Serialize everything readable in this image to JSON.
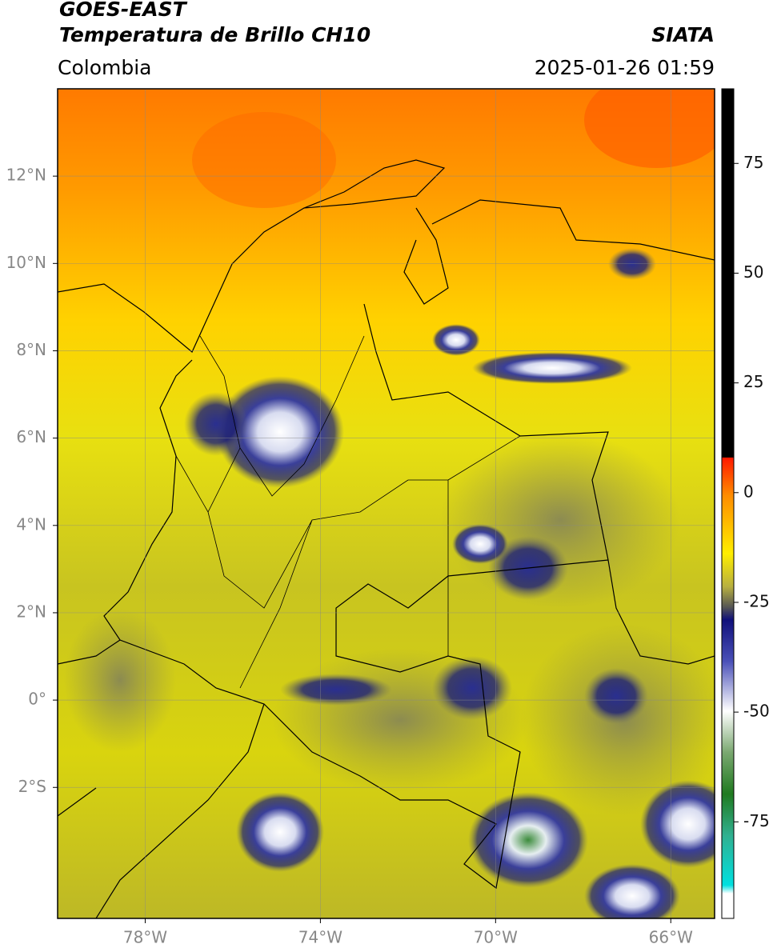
{
  "chart_data": {
    "type": "map",
    "title": "GOES-EAST",
    "subtitle": "Temperatura de Brillo CH10",
    "source": "SIATA",
    "region": "Colombia",
    "datetime": "2025-01-26 01:59",
    "xlim": [
      -80,
      -65
    ],
    "xticks": [
      {
        "value": -78,
        "label": "78°W"
      },
      {
        "value": -74,
        "label": "74°W"
      },
      {
        "value": -70,
        "label": "70°W"
      },
      {
        "value": -66,
        "label": "66°W"
      }
    ],
    "ylim": [
      -5,
      14
    ],
    "yticks": [
      {
        "value": 12,
        "label": "12°N"
      },
      {
        "value": 10,
        "label": "10°N"
      },
      {
        "value": 8,
        "label": "8°N"
      },
      {
        "value": 6,
        "label": "6°N"
      },
      {
        "value": 4,
        "label": "4°N"
      },
      {
        "value": 2,
        "label": "2°N"
      },
      {
        "value": 0,
        "label": "0°"
      },
      {
        "value": -2,
        "label": "2°S"
      }
    ],
    "clim": [
      -97,
      92
    ],
    "cticks": [
      75,
      50,
      25,
      0,
      -25,
      -50,
      -75
    ],
    "grid": true
  }
}
